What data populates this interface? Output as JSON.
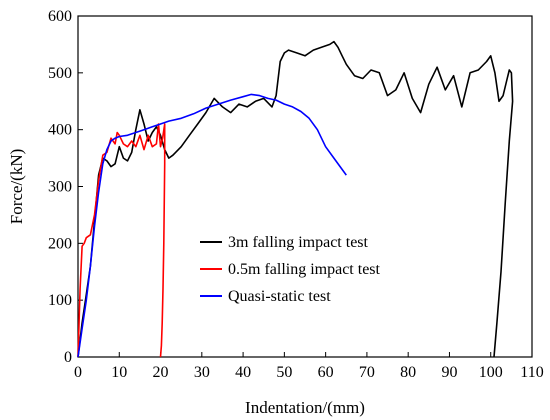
{
  "chart_data": {
    "type": "line",
    "xlabel": "Indentation/(mm)",
    "ylabel": "Force/(kN)",
    "xlim": [
      0,
      110
    ],
    "ylim": [
      0,
      600
    ],
    "xticks": [
      0,
      10,
      20,
      30,
      40,
      50,
      60,
      70,
      80,
      90,
      100,
      110
    ],
    "yticks": [
      0,
      100,
      200,
      300,
      400,
      500,
      600
    ],
    "xtick_labels": [
      "0",
      "10",
      "20",
      "30",
      "40",
      "50",
      "60",
      "70",
      "80",
      "90",
      "100",
      "110"
    ],
    "ytick_labels": [
      "0",
      "100",
      "200",
      "300",
      "400",
      "500",
      "600"
    ],
    "legend_position": "center",
    "series": [
      {
        "name": "3m falling impact test",
        "color": "#000000",
        "x": [
          0,
          1,
          2,
          3,
          4,
          5,
          6,
          7,
          8,
          9,
          10,
          11,
          12,
          13,
          14,
          15,
          16,
          17,
          18,
          19,
          20,
          21,
          22,
          23,
          25,
          27,
          29,
          31,
          33,
          35,
          37,
          39,
          41,
          43,
          45,
          47,
          48,
          49,
          50,
          51,
          53,
          55,
          57,
          59,
          61,
          62,
          63,
          64,
          65,
          67,
          69,
          71,
          73,
          75,
          77,
          79,
          81,
          83,
          85,
          87,
          89,
          91,
          93,
          95,
          97,
          99,
          100,
          101,
          102,
          103,
          104,
          104.5,
          105,
          105.3,
          104.5,
          103.5,
          102.5,
          101.5,
          100.8
        ],
        "y": [
          0,
          60,
          110,
          160,
          240,
          320,
          350,
          345,
          335,
          340,
          370,
          350,
          345,
          360,
          400,
          435,
          410,
          380,
          395,
          405,
          390,
          365,
          350,
          355,
          370,
          390,
          410,
          430,
          455,
          440,
          430,
          445,
          440,
          450,
          455,
          440,
          460,
          520,
          535,
          540,
          535,
          530,
          540,
          545,
          550,
          555,
          545,
          530,
          515,
          495,
          490,
          505,
          500,
          460,
          470,
          500,
          455,
          430,
          480,
          510,
          470,
          495,
          440,
          500,
          505,
          520,
          530,
          500,
          450,
          460,
          490,
          505,
          500,
          450,
          380,
          270,
          150,
          60,
          0
        ]
      },
      {
        "name": "0.5m falling impact test",
        "color": "#ff0000",
        "x": [
          0,
          0.5,
          1,
          1.5,
          2,
          3,
          4,
          5,
          6,
          7,
          8,
          9,
          9.5,
          10,
          11,
          12,
          13,
          14,
          15,
          16,
          17,
          18,
          19,
          19.5,
          20,
          20.5,
          21,
          21,
          20.8,
          20.6,
          20.4,
          20.2,
          20
        ],
        "y": [
          0,
          120,
          195,
          200,
          210,
          215,
          250,
          310,
          355,
          360,
          385,
          375,
          395,
          390,
          375,
          370,
          380,
          370,
          390,
          365,
          390,
          370,
          375,
          410,
          370,
          385,
          410,
          340,
          200,
          120,
          60,
          20,
          0
        ]
      },
      {
        "name": "Quasi-static test",
        "color": "#0000ff",
        "x": [
          0,
          1,
          2,
          3,
          4,
          5,
          6,
          7,
          8,
          9,
          10,
          12,
          14,
          16,
          18,
          20,
          22,
          25,
          28,
          31,
          34,
          37,
          40,
          42,
          44,
          46,
          48,
          50,
          52,
          54,
          56,
          58,
          60,
          62,
          64,
          65
        ],
        "y": [
          0,
          50,
          100,
          160,
          230,
          290,
          340,
          365,
          380,
          385,
          388,
          390,
          395,
          400,
          405,
          410,
          415,
          420,
          428,
          438,
          445,
          452,
          458,
          462,
          460,
          455,
          452,
          445,
          440,
          432,
          420,
          400,
          370,
          350,
          330,
          320
        ]
      }
    ]
  }
}
